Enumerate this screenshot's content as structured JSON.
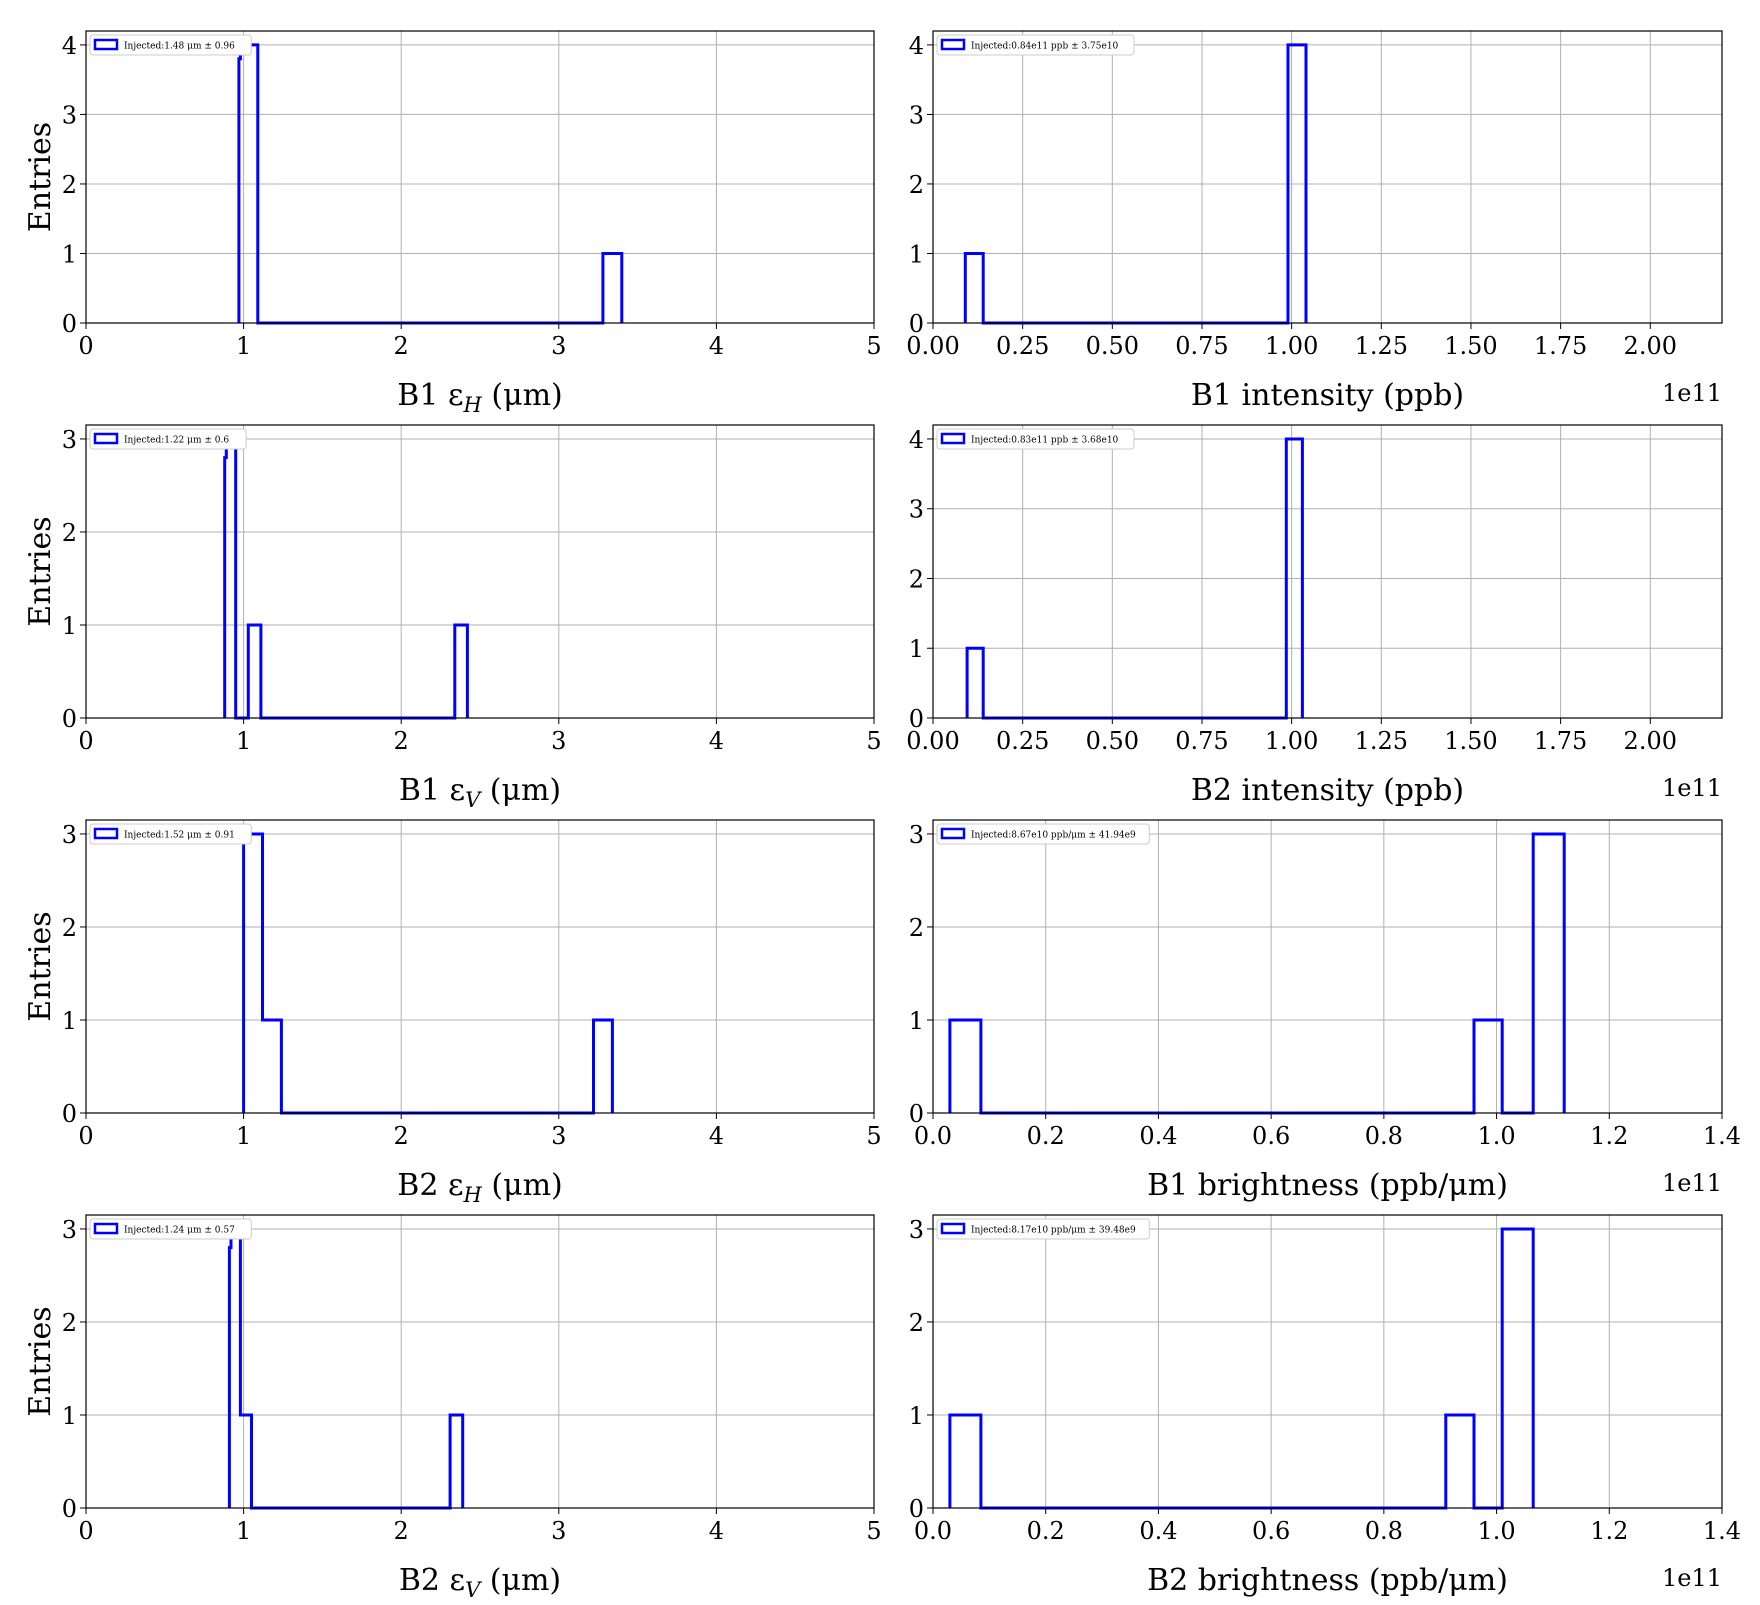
{
  "figure": {
    "ylabel": "Entries"
  },
  "chart_data": [
    {
      "type": "histogram-step",
      "xlabel": "B1 εH (μm)",
      "x_base": "B1 ε",
      "x_sub": "H",
      "x_rest": " (μm)",
      "xlim": [
        0,
        5
      ],
      "ylim": [
        0,
        4.2
      ],
      "xticks": [
        "0",
        "1",
        "2",
        "3",
        "4",
        "5"
      ],
      "xtick_values": [
        0,
        1,
        2,
        3,
        4,
        5
      ],
      "yticks": [
        "0",
        "1",
        "2",
        "3",
        "4"
      ],
      "ytick_values": [
        0,
        1,
        2,
        3,
        4
      ],
      "offset_text": "",
      "legend": "Injected:1.48 μm ± 0.96",
      "step_x": [
        0.97,
        0.97,
        0.98,
        0.98,
        1.09,
        1.09,
        3.28,
        3.28,
        3.4,
        3.4
      ],
      "step_y": [
        0,
        3.8,
        3.8,
        4,
        4,
        0,
        0,
        1,
        1,
        0
      ]
    },
    {
      "type": "histogram-step",
      "xlabel": "B1 intensity (ppb)",
      "x_base": "B1 intensity (ppb)",
      "x_sub": "",
      "x_rest": "",
      "xlim": [
        0,
        2.2
      ],
      "ylim": [
        0,
        4.2
      ],
      "xticks": [
        "0.00",
        "0.25",
        "0.50",
        "0.75",
        "1.00",
        "1.25",
        "1.50",
        "1.75",
        "2.00"
      ],
      "xtick_values": [
        0,
        0.25,
        0.5,
        0.75,
        1.0,
        1.25,
        1.5,
        1.75,
        2.0
      ],
      "yticks": [
        "0",
        "1",
        "2",
        "3",
        "4"
      ],
      "ytick_values": [
        0,
        1,
        2,
        3,
        4
      ],
      "offset_text": "1e11",
      "legend": "Injected:0.84e11 ppb ± 3.75e10",
      "step_x": [
        0.09,
        0.09,
        0.14,
        0.14,
        0.99,
        0.99,
        1.04,
        1.04
      ],
      "step_y": [
        0,
        1,
        1,
        0,
        0,
        4,
        4,
        0
      ]
    },
    {
      "type": "histogram-step",
      "xlabel": "B1 εV (μm)",
      "x_base": "B1 ε",
      "x_sub": "V",
      "x_rest": " (μm)",
      "xlim": [
        0,
        5
      ],
      "ylim": [
        0,
        3.15
      ],
      "xticks": [
        "0",
        "1",
        "2",
        "3",
        "4",
        "5"
      ],
      "xtick_values": [
        0,
        1,
        2,
        3,
        4,
        5
      ],
      "yticks": [
        "0",
        "1",
        "2",
        "3"
      ],
      "ytick_values": [
        0,
        1,
        2,
        3
      ],
      "offset_text": "",
      "legend": "Injected:1.22 μm ± 0.6",
      "step_x": [
        0.88,
        0.88,
        0.89,
        0.89,
        0.95,
        0.95,
        1.03,
        1.03,
        1.11,
        1.11,
        2.34,
        2.34,
        2.42,
        2.42
      ],
      "step_y": [
        0,
        2.8,
        2.8,
        3,
        3,
        0,
        0,
        1,
        1,
        0,
        0,
        1,
        1,
        0
      ]
    },
    {
      "type": "histogram-step",
      "xlabel": "B2 intensity (ppb)",
      "x_base": "B2 intensity (ppb)",
      "x_sub": "",
      "x_rest": "",
      "xlim": [
        0,
        2.2
      ],
      "ylim": [
        0,
        4.2
      ],
      "xticks": [
        "0.00",
        "0.25",
        "0.50",
        "0.75",
        "1.00",
        "1.25",
        "1.50",
        "1.75",
        "2.00"
      ],
      "xtick_values": [
        0,
        0.25,
        0.5,
        0.75,
        1.0,
        1.25,
        1.5,
        1.75,
        2.0
      ],
      "yticks": [
        "0",
        "1",
        "2",
        "3",
        "4"
      ],
      "ytick_values": [
        0,
        1,
        2,
        3,
        4
      ],
      "offset_text": "1e11",
      "legend": "Injected:0.83e11 ppb ± 3.68e10",
      "step_x": [
        0.095,
        0.095,
        0.14,
        0.14,
        0.985,
        0.985,
        1.03,
        1.03
      ],
      "step_y": [
        0,
        1,
        1,
        0,
        0,
        4,
        4,
        0
      ]
    },
    {
      "type": "histogram-step",
      "xlabel": "B2 εH (μm)",
      "x_base": "B2 ε",
      "x_sub": "H",
      "x_rest": " (μm)",
      "xlim": [
        0,
        5
      ],
      "ylim": [
        0,
        3.15
      ],
      "xticks": [
        "0",
        "1",
        "2",
        "3",
        "4",
        "5"
      ],
      "xtick_values": [
        0,
        1,
        2,
        3,
        4,
        5
      ],
      "yticks": [
        "0",
        "1",
        "2",
        "3"
      ],
      "ytick_values": [
        0,
        1,
        2,
        3
      ],
      "offset_text": "",
      "legend": "Injected:1.52 μm ± 0.91",
      "step_x": [
        1.0,
        1.0,
        1.12,
        1.12,
        1.24,
        1.24,
        3.22,
        3.22,
        3.34,
        3.34
      ],
      "step_y": [
        0,
        3,
        3,
        1,
        1,
        0,
        0,
        1,
        1,
        0
      ]
    },
    {
      "type": "histogram-step",
      "xlabel": "B1 brightness (ppb/μm)",
      "x_base": "B1 brightness (ppb/μm)",
      "x_sub": "",
      "x_rest": "",
      "xlim": [
        0,
        1.4
      ],
      "ylim": [
        0,
        3.15
      ],
      "xticks": [
        "0.0",
        "0.2",
        "0.4",
        "0.6",
        "0.8",
        "1.0",
        "1.2",
        "1.4"
      ],
      "xtick_values": [
        0,
        0.2,
        0.4,
        0.6,
        0.8,
        1.0,
        1.2,
        1.4
      ],
      "yticks": [
        "0",
        "1",
        "2",
        "3"
      ],
      "ytick_values": [
        0,
        1,
        2,
        3
      ],
      "offset_text": "1e11",
      "legend": "Injected:8.67e10 ppb/μm ± 41.94e9",
      "step_x": [
        0.03,
        0.03,
        0.085,
        0.085,
        0.96,
        0.96,
        1.01,
        1.01,
        1.065,
        1.065,
        1.12,
        1.12
      ],
      "step_y": [
        0,
        1,
        1,
        0,
        0,
        1,
        1,
        0,
        0,
        3,
        3,
        0
      ]
    },
    {
      "type": "histogram-step",
      "xlabel": "B2 εV (μm)",
      "x_base": "B2 ε",
      "x_sub": "V",
      "x_rest": " (μm)",
      "xlim": [
        0,
        5
      ],
      "ylim": [
        0,
        3.15
      ],
      "xticks": [
        "0",
        "1",
        "2",
        "3",
        "4",
        "5"
      ],
      "xtick_values": [
        0,
        1,
        2,
        3,
        4,
        5
      ],
      "yticks": [
        "0",
        "1",
        "2",
        "3"
      ],
      "ytick_values": [
        0,
        1,
        2,
        3
      ],
      "offset_text": "",
      "legend": "Injected:1.24 μm ± 0.57",
      "step_x": [
        0.91,
        0.91,
        0.92,
        0.92,
        0.98,
        0.98,
        1.05,
        1.05,
        2.31,
        2.31,
        2.39,
        2.39
      ],
      "step_y": [
        0,
        2.8,
        2.8,
        3,
        3,
        1,
        1,
        0,
        0,
        1,
        1,
        0
      ]
    },
    {
      "type": "histogram-step",
      "xlabel": "B2 brightness (ppb/μm)",
      "x_base": "B2 brightness (ppb/μm)",
      "x_sub": "",
      "x_rest": "",
      "xlim": [
        0,
        1.4
      ],
      "ylim": [
        0,
        3.15
      ],
      "xticks": [
        "0.0",
        "0.2",
        "0.4",
        "0.6",
        "0.8",
        "1.0",
        "1.2",
        "1.4"
      ],
      "xtick_values": [
        0,
        0.2,
        0.4,
        0.6,
        0.8,
        1.0,
        1.2,
        1.4
      ],
      "yticks": [
        "0",
        "1",
        "2",
        "3"
      ],
      "ytick_values": [
        0,
        1,
        2,
        3
      ],
      "offset_text": "1e11",
      "legend": "Injected:8.17e10 ppb/μm ± 39.48e9",
      "step_x": [
        0.03,
        0.03,
        0.085,
        0.085,
        0.91,
        0.91,
        0.96,
        0.96,
        1.01,
        1.01,
        1.065,
        1.065
      ],
      "step_y": [
        0,
        1,
        1,
        0,
        0,
        1,
        1,
        0,
        0,
        3,
        3,
        0
      ]
    }
  ],
  "colors": {
    "series": "#0000ff",
    "grid": "#b0b0b0",
    "frame": "#000000"
  }
}
